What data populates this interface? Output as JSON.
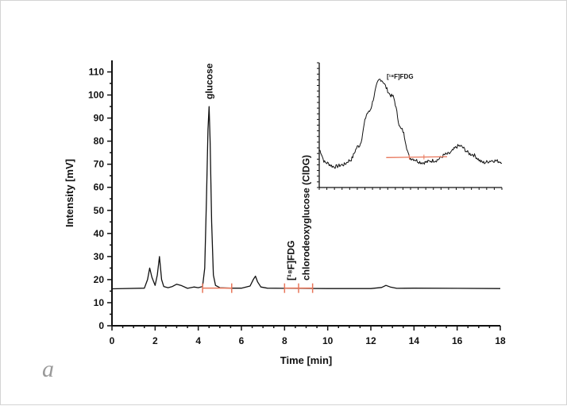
{
  "panel_letter": "a",
  "colors": {
    "trace": "#111111",
    "integration": "#e8765a",
    "axis": "#111111"
  },
  "chart_data": [
    {
      "type": "line",
      "xlabel": "Time [min]",
      "ylabel": "Intensity [mV]",
      "xlim": [
        0,
        18
      ],
      "ylim": [
        0,
        115
      ],
      "xticks": [
        "0",
        "2",
        "4",
        "6",
        "8",
        "10",
        "12",
        "14",
        "16",
        "18"
      ],
      "yticks": [
        "0",
        "10",
        "20",
        "30",
        "40",
        "50",
        "60",
        "70",
        "80",
        "90",
        "100",
        "110"
      ],
      "series": [
        {
          "x": [
            0,
            1.5,
            1.65,
            1.75,
            1.85,
            2.0,
            2.1,
            2.2,
            2.3,
            2.4,
            2.6,
            2.8,
            3.0,
            3.2,
            3.5,
            3.8,
            4.0,
            4.2,
            4.3,
            4.38,
            4.45,
            4.5,
            4.55,
            4.62,
            4.7,
            4.8,
            5.0,
            5.5,
            6.0,
            6.4,
            6.55,
            6.65,
            6.75,
            6.9,
            7.2,
            8.0,
            10.0,
            12.0,
            12.5,
            12.7,
            12.9,
            13.2,
            14.0,
            16.0,
            18.0
          ],
          "y": [
            16,
            16.3,
            20,
            25,
            21,
            17.5,
            22,
            30,
            20,
            17,
            16.5,
            17,
            18,
            17.5,
            16.2,
            16.8,
            16.5,
            17,
            25,
            55,
            85,
            95,
            80,
            45,
            22,
            17.5,
            16.5,
            16.3,
            16.3,
            17.2,
            20,
            21.5,
            19,
            16.8,
            16.3,
            16.2,
            16.1,
            16.1,
            16.6,
            17.5,
            16.8,
            16.2,
            16.3,
            16.2,
            16.1
          ]
        }
      ],
      "integration_ticks": [
        4.2,
        5.55,
        8.0,
        8.65,
        9.3
      ],
      "annotations": [
        {
          "text": "glucose",
          "x": 4.5
        },
        {
          "text": "[¹⁸F]FDG",
          "x": 8.3
        },
        {
          "text": "chlorodeoxyglucose (ClDG)",
          "x": 9.0
        }
      ]
    },
    {
      "type": "line",
      "xlim": [
        12,
        18
      ],
      "annotations": [
        {
          "text": "[¹⁸F]FDG"
        }
      ],
      "series": [
        {
          "x": [
            12.0,
            12.2,
            12.5,
            12.8,
            13.0,
            13.3,
            13.6,
            14.0,
            14.4,
            14.7,
            15.0,
            15.4,
            15.8,
            16.2,
            16.6,
            17.0,
            17.4,
            17.7,
            18.0
          ],
          "y": [
            83,
            80,
            79,
            79.5,
            80.5,
            84,
            92,
            100,
            96,
            88,
            81,
            80,
            80.5,
            82,
            84,
            82,
            80,
            80.5,
            80.2
          ]
        }
      ],
      "integration_baseline": [
        [
          14.2,
          81.2
        ],
        [
          16.2,
          81.4
        ]
      ]
    }
  ]
}
